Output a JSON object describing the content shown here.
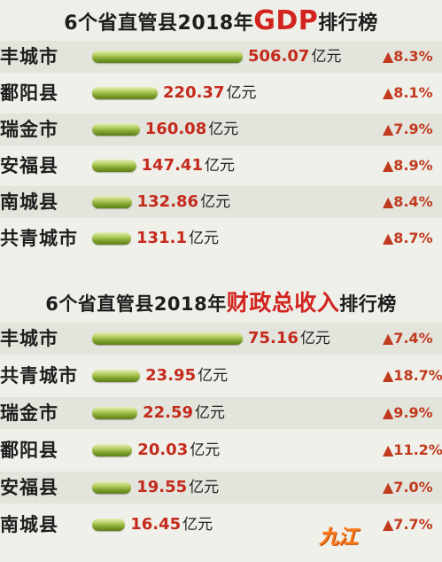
{
  "watermark": "九江 ",
  "chart_data": [
    {
      "type": "bar",
      "title_pre": "6个省直管县2018年",
      "title_hl": "GDP",
      "title_post": "排行榜",
      "unit": "亿元",
      "max": 506.07,
      "categories": [
        "丰城市",
        "鄱阳县",
        "瑞金市",
        "安福县",
        "南城县",
        "共青城市"
      ],
      "values": [
        506.07,
        220.37,
        160.08,
        147.41,
        132.86,
        131.1
      ],
      "labels": [
        "506.07",
        "220.37",
        "160.08",
        "147.41",
        "132.86",
        "131.1"
      ],
      "growth": [
        "▲8.3%",
        "▲8.1%",
        "▲7.9%",
        "▲8.9%",
        "▲8.4%",
        "▲8.7%"
      ]
    },
    {
      "type": "bar",
      "title_pre": "6个省直管县2018年",
      "title_hl": "财政总收入",
      "title_post": "排行榜",
      "unit": "亿元",
      "max": 75.16,
      "categories": [
        "丰城市",
        "共青城市",
        "瑞金市",
        "鄱阳县",
        "安福县",
        "南城县"
      ],
      "values": [
        75.16,
        23.95,
        22.59,
        20.03,
        19.55,
        16.45
      ],
      "labels": [
        "75.16",
        "23.95",
        "22.59",
        "20.03",
        "19.55",
        "16.45"
      ],
      "growth": [
        "▲7.4%",
        "▲18.7%",
        "▲9.9%",
        "▲11.2%",
        "▲7.0%",
        "▲7.7%"
      ]
    }
  ]
}
